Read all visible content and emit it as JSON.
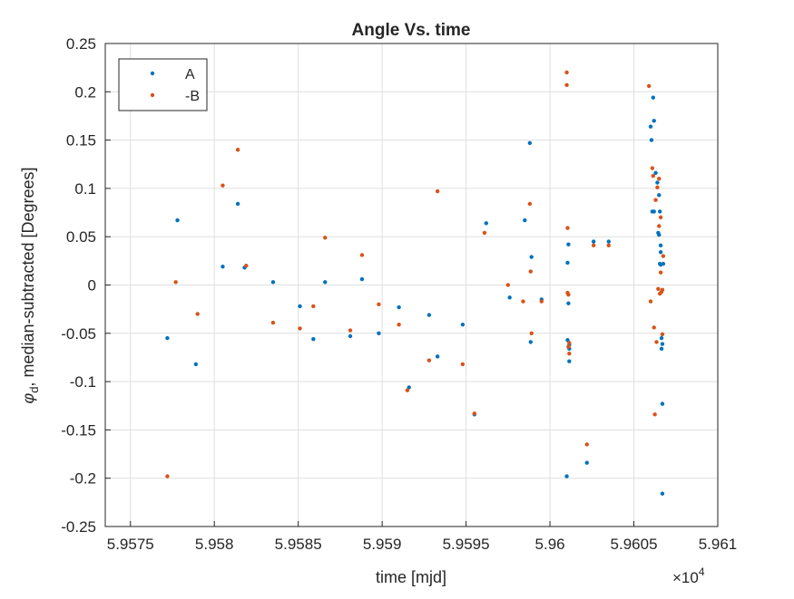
{
  "chart_data": {
    "type": "scatter",
    "title": "Angle Vs. time",
    "xlabel": "time [mjd]",
    "ylabel_symbol": "φ",
    "ylabel_subscript": "d",
    "ylabel_rest": ", median-subtracted [Degrees]",
    "x_exponent_prefix": "×10",
    "x_exponent_power": "4",
    "x_scale": 10000,
    "xlim": [
      59573.5,
      59610
    ],
    "ylim": [
      -0.25,
      0.25
    ],
    "x_ticks": [
      59575,
      59580,
      59585,
      59590,
      59595,
      59600,
      59605,
      59610
    ],
    "x_tick_labels": [
      "5.9575",
      "5.958",
      "5.9585",
      "5.959",
      "5.9595",
      "5.96",
      "5.9605",
      "5.961"
    ],
    "y_ticks": [
      -0.25,
      -0.2,
      -0.15,
      -0.1,
      -0.05,
      0,
      0.05,
      0.1,
      0.15,
      0.2,
      0.25
    ],
    "y_tick_labels": [
      "-0.25",
      "-0.2",
      "-0.15",
      "-0.1",
      "-0.05",
      "0",
      "0.05",
      "0.1",
      "0.15",
      "0.2",
      "0.25"
    ],
    "grid": true,
    "legend_position": "top-left",
    "series": [
      {
        "name": "A",
        "color": "#0072BD",
        "x": [
          59577.2,
          59577.8,
          59578.9,
          59580.5,
          59581.4,
          59581.8,
          59583.5,
          59585.1,
          59585.9,
          59586.6,
          59588.1,
          59588.8,
          59589.8,
          59591.0,
          59591.6,
          59592.8,
          59593.3,
          59594.8,
          59595.5,
          59596.2,
          59597.6,
          59598.5,
          59598.8,
          59598.85,
          59598.9,
          59599.5,
          59601.0,
          59601.05,
          59601.05,
          59601.1,
          59601.1,
          59601.15,
          59601.15,
          59601.15,
          59602.2,
          59602.6,
          59603.5,
          59606.0,
          59606.05,
          59606.1,
          59606.15,
          59606.2,
          59606.2,
          59606.3,
          59606.4,
          59606.45,
          59606.5,
          59606.5,
          59606.55,
          59606.55,
          59606.6,
          59606.6,
          59606.6,
          59606.65,
          59606.65,
          59606.7,
          59606.7,
          59606.7,
          59606.75
        ],
        "y": [
          -0.055,
          0.067,
          -0.082,
          0.019,
          0.084,
          0.018,
          0.003,
          -0.022,
          -0.056,
          0.003,
          -0.053,
          0.006,
          -0.05,
          -0.023,
          -0.106,
          -0.031,
          -0.074,
          -0.041,
          -0.134,
          0.064,
          -0.013,
          0.067,
          0.147,
          -0.059,
          0.029,
          -0.015,
          -0.198,
          -0.057,
          0.023,
          0.042,
          -0.019,
          -0.062,
          -0.066,
          -0.079,
          -0.184,
          0.045,
          0.045,
          0.164,
          0.15,
          0.076,
          0.194,
          0.17,
          0.076,
          0.116,
          0.106,
          0.054,
          0.052,
          0.093,
          0.022,
          0.076,
          0.041,
          0.034,
          0.021,
          -0.055,
          -0.066,
          -0.061,
          -0.123,
          -0.216,
          0.022
        ]
      },
      {
        "name": "-B",
        "color": "#D95319",
        "x": [
          59577.2,
          59577.7,
          59579.0,
          59580.5,
          59581.4,
          59581.9,
          59583.5,
          59585.1,
          59585.9,
          59586.6,
          59588.1,
          59588.8,
          59589.8,
          59591.0,
          59591.5,
          59592.8,
          59593.3,
          59594.8,
          59595.5,
          59596.1,
          59597.5,
          59598.4,
          59598.8,
          59598.85,
          59598.9,
          59599.5,
          59601.0,
          59601.0,
          59601.05,
          59601.05,
          59601.1,
          59601.1,
          59601.15,
          59601.15,
          59602.2,
          59602.6,
          59603.5,
          59605.9,
          59606.0,
          59606.1,
          59606.15,
          59606.2,
          59606.25,
          59606.3,
          59606.35,
          59606.4,
          59606.45,
          59606.5,
          59606.5,
          59606.55,
          59606.6,
          59606.6,
          59606.65,
          59606.7,
          59606.7,
          59606.75
        ],
        "y": [
          -0.198,
          0.003,
          -0.03,
          0.103,
          0.14,
          0.02,
          -0.039,
          -0.045,
          -0.022,
          0.049,
          -0.047,
          0.031,
          -0.02,
          -0.041,
          -0.109,
          -0.078,
          0.097,
          -0.082,
          -0.133,
          0.054,
          0.0,
          -0.017,
          0.084,
          0.014,
          -0.05,
          -0.017,
          0.22,
          0.207,
          0.059,
          -0.008,
          -0.01,
          -0.064,
          -0.071,
          -0.06,
          -0.165,
          0.041,
          0.041,
          0.206,
          -0.017,
          0.121,
          0.113,
          -0.044,
          -0.134,
          0.088,
          -0.059,
          0.101,
          -0.004,
          0.11,
          0.061,
          -0.009,
          0.07,
          0.013,
          -0.007,
          -0.051,
          -0.005,
          0.03
        ]
      }
    ]
  }
}
